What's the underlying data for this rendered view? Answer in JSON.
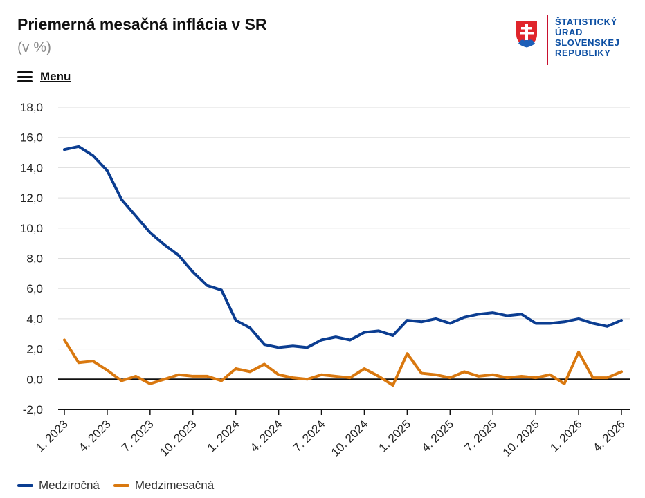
{
  "header": {
    "title": "Priemerná mesačná inflácia v SR",
    "subtitle": "(v %)",
    "menu_label": "Menu"
  },
  "logo": {
    "lines": [
      "ŠTATISTICKÝ",
      "ÚRAD",
      "SLOVENSKEJ",
      "REPUBLIKY"
    ],
    "text_color": "#0b4ea2",
    "accent_color": "#c8102e"
  },
  "chart_data": {
    "type": "line",
    "title": "Priemerná mesačná inflácia v SR",
    "subtitle": "(v %)",
    "ylim": [
      -2,
      18
    ],
    "y_ticks": [
      "-2,0",
      "0,0",
      "2,0",
      "4,0",
      "6,0",
      "8,0",
      "10,0",
      "12,0",
      "14,0",
      "16,0",
      "18,0"
    ],
    "x_tick_labels": [
      "1. 2023",
      "4. 2023",
      "7. 2023",
      "10. 2023",
      "1. 2024",
      "4. 2024",
      "7. 2024",
      "10. 2024",
      "1. 2025",
      "4. 2025",
      "7. 2025",
      "10. 2025",
      "1. 2026",
      "4. 2026"
    ],
    "x": [
      "1. 2023",
      "2. 2023",
      "3. 2023",
      "4. 2023",
      "5. 2023",
      "6. 2023",
      "7. 2023",
      "8. 2023",
      "9. 2023",
      "10. 2023",
      "11. 2023",
      "12. 2023",
      "1. 2024",
      "2. 2024",
      "3. 2024",
      "4. 2024",
      "5. 2024",
      "6. 2024",
      "7. 2024",
      "8. 2024",
      "9. 2024",
      "10. 2024",
      "11. 2024",
      "12. 2024",
      "1. 2025",
      "2. 2025",
      "3. 2025",
      "4. 2025",
      "5. 2025",
      "6. 2025",
      "7. 2025",
      "8. 2025",
      "9. 2025",
      "10. 2025",
      "11. 2025",
      "12. 2025",
      "1. 2026",
      "2. 2026",
      "3. 2026",
      "4. 2026"
    ],
    "grid": true,
    "legend_position": "bottom-left",
    "series": [
      {
        "name": "Medziročná",
        "color": "#0b3d91",
        "values": [
          15.2,
          15.4,
          14.8,
          13.8,
          11.9,
          10.8,
          9.7,
          8.9,
          8.2,
          7.1,
          6.2,
          5.9,
          3.9,
          3.4,
          2.3,
          2.1,
          2.2,
          2.1,
          2.6,
          2.8,
          2.6,
          3.1,
          3.2,
          2.9,
          3.9,
          3.8,
          4.0,
          3.7,
          4.1,
          4.3,
          4.4,
          4.2,
          4.3,
          3.7,
          3.7,
          3.8,
          4.0,
          3.7,
          3.5,
          3.9
        ]
      },
      {
        "name": "Medzimesačná",
        "color": "#d9780f",
        "values": [
          2.6,
          1.1,
          1.2,
          0.6,
          -0.1,
          0.2,
          -0.3,
          0.0,
          0.3,
          0.2,
          0.2,
          -0.1,
          0.7,
          0.5,
          1.0,
          0.3,
          0.1,
          0.0,
          0.3,
          0.2,
          0.1,
          0.7,
          0.2,
          -0.4,
          1.7,
          0.4,
          0.3,
          0.1,
          0.5,
          0.2,
          0.3,
          0.1,
          0.2,
          0.1,
          0.3,
          -0.3,
          1.8,
          0.1,
          0.1,
          0.5
        ]
      }
    ]
  }
}
